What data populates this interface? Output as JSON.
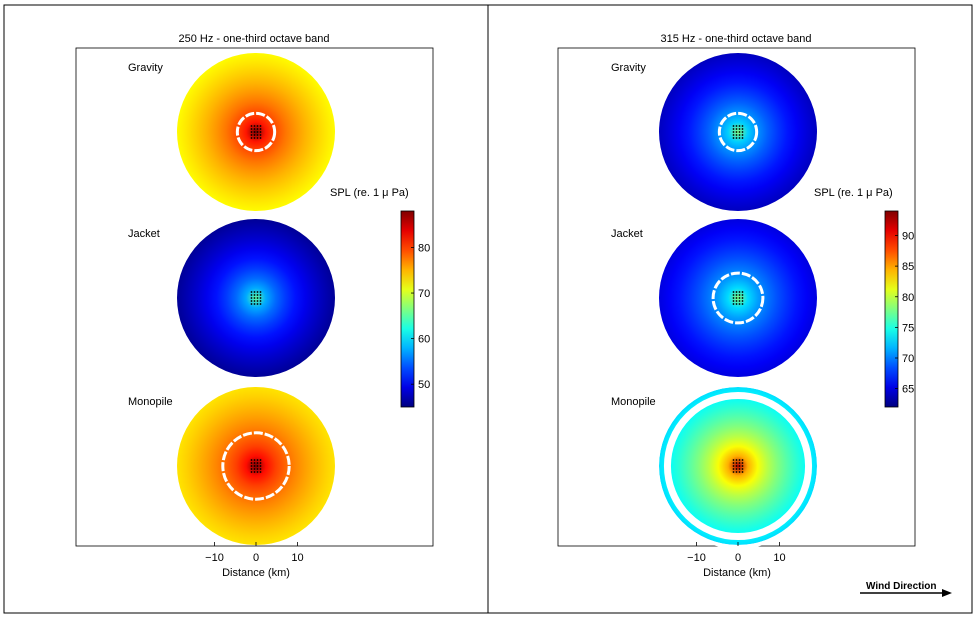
{
  "figure": {
    "wind_label": "Wind Direction"
  },
  "chart_data": [
    {
      "type": "heatmap",
      "title": "250 Hz - one-third octave band",
      "xlabel": "Distance (km)",
      "ylabel": "",
      "x_ticks": [
        -10,
        0,
        10
      ],
      "xlim": [
        -20,
        20
      ],
      "colorbar": {
        "label": "SPL (re. 1 μ Pa)",
        "range": [
          45,
          88
        ],
        "ticks": [
          50,
          60,
          70,
          80
        ],
        "colormap": "jet"
      },
      "panels": [
        {
          "label": "Gravity",
          "edge_level": 72,
          "center_level": 88,
          "contour_radius_km": 4.5,
          "contour": "white"
        },
        {
          "label": "Jacket",
          "edge_level": 46,
          "center_level": 65,
          "contour_radius_km": 0,
          "contour": "none"
        },
        {
          "label": "Monopile",
          "edge_level": 73,
          "center_level": 88,
          "contour_radius_km": 8.0,
          "contour": "white"
        }
      ]
    },
    {
      "type": "heatmap",
      "title": "315 Hz - one-third octave band",
      "xlabel": "Distance (km)",
      "ylabel": "",
      "x_ticks": [
        -10,
        0,
        10
      ],
      "xlim": [
        -20,
        20
      ],
      "colorbar": {
        "label": "SPL (re. 1 μ Pa)",
        "range": [
          62,
          94
        ],
        "ticks": [
          65,
          70,
          75,
          80,
          85,
          90
        ],
        "colormap": "jet"
      },
      "panels": [
        {
          "label": "Gravity",
          "edge_level": 64,
          "center_level": 78,
          "contour_radius_km": 4.5,
          "contour": "white"
        },
        {
          "label": "Jacket",
          "edge_level": 65,
          "center_level": 78,
          "contour_radius_km": 6.0,
          "contour": "white"
        },
        {
          "label": "Monopile",
          "edge_level": 73,
          "center_level": 92,
          "contour_radius_km": 17.0,
          "contour": "white-edge"
        }
      ]
    }
  ]
}
